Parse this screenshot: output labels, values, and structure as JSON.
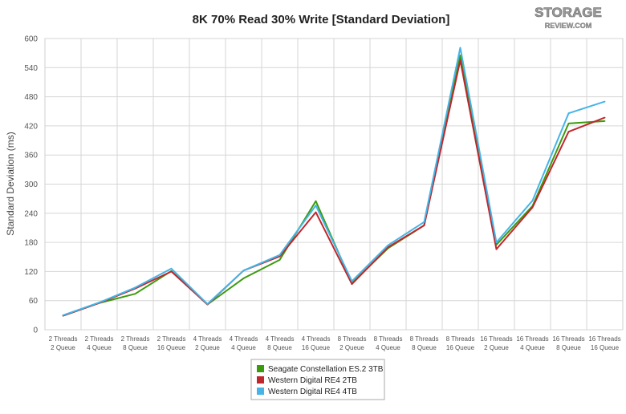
{
  "logo": {
    "line1": "STORAGE",
    "line2": "REVIEW.COM"
  },
  "chart_data": {
    "type": "line",
    "title": "8K 70% Read 30% Write [Standard Deviation]",
    "xlabel": "",
    "ylabel": "Standard Deviation (ms)",
    "ylim": [
      0,
      600
    ],
    "yticks": [
      0,
      60,
      120,
      180,
      240,
      300,
      360,
      420,
      480,
      540,
      600
    ],
    "grid": true,
    "legend_position": "bottom",
    "categories": [
      [
        "2 Threads",
        "2 Queue"
      ],
      [
        "2 Threads",
        "4 Queue"
      ],
      [
        "2 Threads",
        "8 Queue"
      ],
      [
        "2 Threads",
        "16 Queue"
      ],
      [
        "4 Threads",
        "2 Queue"
      ],
      [
        "4 Threads",
        "4 Queue"
      ],
      [
        "4 Threads",
        "8 Queue"
      ],
      [
        "4 Threads",
        "16 Queue"
      ],
      [
        "8 Threads",
        "2 Queue"
      ],
      [
        "8 Threads",
        "4 Queue"
      ],
      [
        "8 Threads",
        "8 Queue"
      ],
      [
        "8 Threads",
        "16 Queue"
      ],
      [
        "16 Threads",
        "2 Queue"
      ],
      [
        "16 Threads",
        "4 Queue"
      ],
      [
        "16 Threads",
        "8 Queue"
      ],
      [
        "16 Threads",
        "16 Queue"
      ]
    ],
    "series": [
      {
        "name": "Seagate Constellation ES.2 3TB",
        "color": "#3c9a0f",
        "values": [
          29,
          55,
          74,
          121,
          52,
          106,
          144,
          265,
          96,
          168,
          215,
          565,
          175,
          255,
          425,
          430
        ]
      },
      {
        "name": "Western Digital RE4 2TB",
        "color": "#c0272d",
        "values": [
          29,
          55,
          85,
          120,
          52,
          122,
          151,
          242,
          94,
          170,
          215,
          555,
          166,
          252,
          408,
          437
        ]
      },
      {
        "name": "Western Digital RE4 4TB",
        "color": "#45b4e7",
        "values": [
          30,
          56,
          87,
          126,
          53,
          122,
          154,
          256,
          100,
          174,
          222,
          581,
          180,
          266,
          446,
          470
        ]
      }
    ]
  }
}
